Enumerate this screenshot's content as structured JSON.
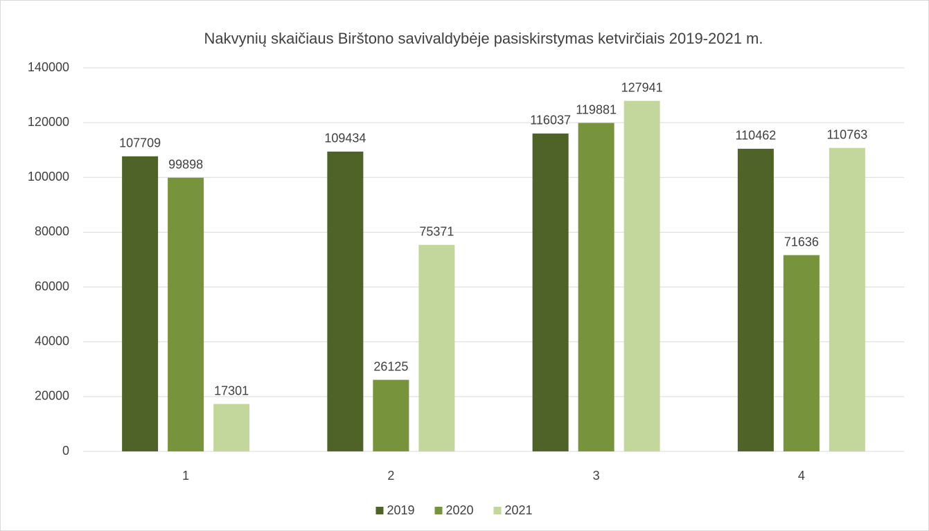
{
  "chart_data": {
    "type": "bar",
    "title": "Nakvynių skaičiaus Birštono savivaldybėje pasiskirstymas ketvirčiais 2019-2021 m.",
    "categories": [
      "1",
      "2",
      "3",
      "4"
    ],
    "series": [
      {
        "name": "2019",
        "color": "#4f6228",
        "values": [
          107709,
          109434,
          116037,
          110462
        ]
      },
      {
        "name": "2020",
        "color": "#77933c",
        "values": [
          99898,
          26125,
          119881,
          71636
        ]
      },
      {
        "name": "2021",
        "color": "#c3d69b",
        "values": [
          17301,
          75371,
          127941,
          110763
        ]
      }
    ],
    "ylim": [
      0,
      140000
    ],
    "yticks": [
      0,
      20000,
      40000,
      60000,
      80000,
      100000,
      120000,
      140000
    ],
    "grid": true,
    "legend": "bottom"
  }
}
